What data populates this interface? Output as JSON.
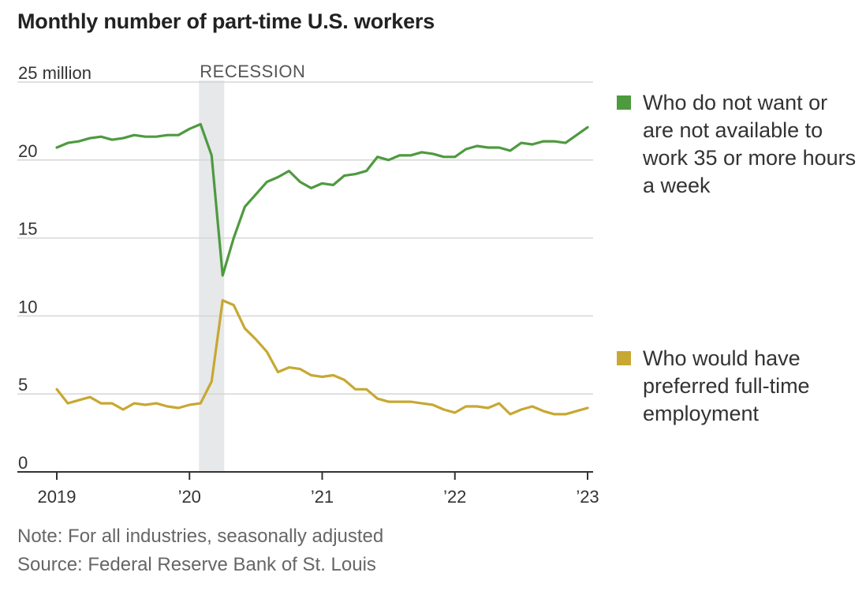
{
  "header": {
    "title": "Monthly number of part-time U.S. workers"
  },
  "notes": {
    "note": "Note: For all industries, seasonally adjusted",
    "source": "Source: Federal Reserve Bank of St. Louis"
  },
  "recession_label": "RECESSION",
  "chart_data": {
    "type": "line",
    "title": "Monthly number of part-time U.S. workers",
    "ylim": [
      0,
      25
    ],
    "y_ticks": [
      0,
      5,
      10,
      15,
      20,
      25
    ],
    "y_tick_labels": [
      "0",
      "5",
      "10",
      "15",
      "20",
      "25 million"
    ],
    "x_ticks": [
      "2019-01",
      "2020-01",
      "2021-01",
      "2022-01",
      "2023-01"
    ],
    "x_tick_labels": [
      "2019",
      "’20",
      "’21",
      "’22",
      "’23"
    ],
    "xlim": [
      "2019-01",
      "2023-01"
    ],
    "grid": true,
    "recession": [
      "2020-02",
      "2020-04"
    ],
    "x": [
      "2019-01",
      "2019-02",
      "2019-03",
      "2019-04",
      "2019-05",
      "2019-06",
      "2019-07",
      "2019-08",
      "2019-09",
      "2019-10",
      "2019-11",
      "2019-12",
      "2020-01",
      "2020-02",
      "2020-03",
      "2020-04",
      "2020-05",
      "2020-06",
      "2020-07",
      "2020-08",
      "2020-09",
      "2020-10",
      "2020-11",
      "2020-12",
      "2021-01",
      "2021-02",
      "2021-03",
      "2021-04",
      "2021-05",
      "2021-06",
      "2021-07",
      "2021-08",
      "2021-09",
      "2021-10",
      "2021-11",
      "2021-12",
      "2022-01",
      "2022-02",
      "2022-03",
      "2022-04",
      "2022-05",
      "2022-06",
      "2022-07",
      "2022-08",
      "2022-09",
      "2022-10",
      "2022-11",
      "2022-12",
      "2023-01"
    ],
    "series": [
      {
        "name": "Who do not want or are not available to work 35 or more hours a week",
        "color": "#4e9a3f",
        "values": [
          20.8,
          21.1,
          21.2,
          21.4,
          21.5,
          21.3,
          21.4,
          21.6,
          21.5,
          21.5,
          21.6,
          21.6,
          22.0,
          22.3,
          20.3,
          12.6,
          15.0,
          17.0,
          17.8,
          18.6,
          18.9,
          19.3,
          18.6,
          18.2,
          18.5,
          18.4,
          19.0,
          19.1,
          19.3,
          20.2,
          20.0,
          20.3,
          20.3,
          20.5,
          20.4,
          20.2,
          20.2,
          20.7,
          20.9,
          20.8,
          20.8,
          20.6,
          21.1,
          21.0,
          21.2,
          21.2,
          21.1,
          21.6,
          22.1
        ]
      },
      {
        "name": "Who would have preferred full-time employment",
        "color": "#c7a832",
        "values": [
          5.3,
          4.4,
          4.6,
          4.8,
          4.4,
          4.4,
          4.0,
          4.4,
          4.3,
          4.4,
          4.2,
          4.1,
          4.3,
          4.4,
          5.8,
          11.0,
          10.7,
          9.2,
          8.5,
          7.7,
          6.4,
          6.7,
          6.6,
          6.2,
          6.1,
          6.2,
          5.9,
          5.3,
          5.3,
          4.7,
          4.5,
          4.5,
          4.5,
          4.4,
          4.3,
          4.0,
          3.8,
          4.2,
          4.2,
          4.1,
          4.4,
          3.7,
          4.0,
          4.2,
          3.9,
          3.7,
          3.7,
          3.9,
          4.1
        ]
      }
    ],
    "legend": [
      {
        "lines": [
          "Who do not want or",
          "are not available to",
          "work 35 or more hours",
          "a week"
        ],
        "color": "#4e9a3f"
      },
      {
        "lines": [
          "Who would have",
          "preferred full-time",
          "employment"
        ],
        "color": "#c7a832"
      }
    ]
  }
}
